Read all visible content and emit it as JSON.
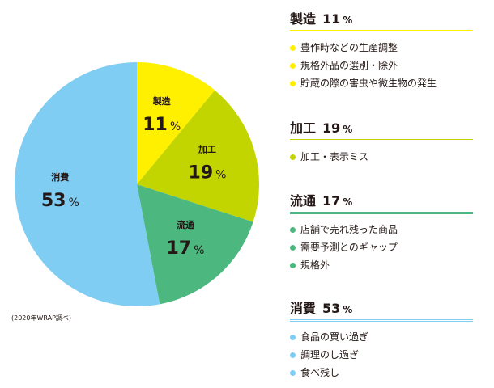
{
  "chart_data": {
    "type": "pie",
    "slices": [
      {
        "id": "manufacturing",
        "label": "製造",
        "value": 11,
        "pct": "11",
        "unit": "%",
        "color": "#fff000"
      },
      {
        "id": "processing",
        "label": "加工",
        "value": 19,
        "pct": "19",
        "unit": "%",
        "color": "#c3d500"
      },
      {
        "id": "distribution",
        "label": "流通",
        "value": 17,
        "pct": "17",
        "unit": "%",
        "color": "#4cb87f"
      },
      {
        "id": "consumption",
        "label": "消費",
        "value": 53,
        "pct": "53",
        "unit": "%",
        "color": "#7fcdf3"
      }
    ],
    "source": "(2020年WRAP調べ)"
  },
  "legend": [
    {
      "title": "製造",
      "pct": "11",
      "unit": "%",
      "color": "#fff000",
      "line_color": "#fff000",
      "items": [
        "豊作時などの生産調整",
        "規格外品の選別・除外",
        "貯蔵の際の害虫や微生物の発生"
      ]
    },
    {
      "title": "加工",
      "pct": "19",
      "unit": "%",
      "color": "#c3d500",
      "line_color": "#c3d500",
      "items": [
        "加工・表示ミス"
      ]
    },
    {
      "title": "流通",
      "pct": "17",
      "unit": "%",
      "color": "#4cb87f",
      "line_color": "#4cb87f",
      "items": [
        "店舗で売れ残った商品",
        "需要予測とのギャップ",
        "規格外"
      ]
    },
    {
      "title": "消費",
      "pct": "53",
      "unit": "%",
      "color": "#7fcdf3",
      "line_color": "#7fcdf3",
      "items": [
        "食品の買い過ぎ",
        "調理のし過ぎ",
        "食べ残し"
      ]
    }
  ]
}
